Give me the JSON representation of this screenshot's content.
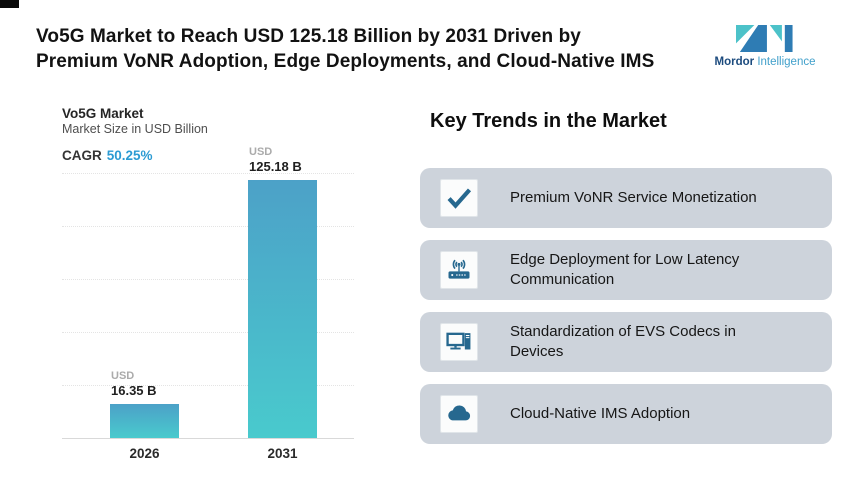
{
  "header": {
    "title_line1": "Vo5G Market to Reach USD 125.18 Billion by 2031 Driven by",
    "title_line2": "Premium VoNR Adoption, Edge Deployments, and Cloud-Native IMS",
    "logo": {
      "brand_primary": "Mordor",
      "brand_secondary": "Intelligence",
      "teal": "#4cc2c9",
      "blue": "#2e7cb4"
    }
  },
  "chart": {
    "title": "Vo5G Market",
    "subtitle": "Market Size in USD Billion",
    "cagr_label": "CAGR",
    "cagr_value": "50.25%",
    "currency_label": "USD"
  },
  "chart_data": {
    "type": "bar",
    "title": "Vo5G Market",
    "subtitle": "Market Size in USD Billion",
    "cagr": "50.25%",
    "categories": [
      "2026",
      "2031"
    ],
    "values": [
      16.35,
      125.18
    ],
    "bar_value_labels": [
      "16.35 B",
      "125.18 B"
    ],
    "unit": "USD Billion",
    "xlabel": "",
    "ylabel": "",
    "ylim": [
      0,
      130
    ],
    "grid": "horizontal-dotted",
    "legend": "none",
    "bar_gradient_top": "#4ca1c8",
    "bar_gradient_bottom": "#49cacd"
  },
  "trends": {
    "heading": "Key Trends in the Market",
    "items": [
      {
        "icon": "checkmark-icon",
        "label": "Premium VoNR Service Monetization"
      },
      {
        "icon": "router-signal-icon",
        "label": "Edge Deployment for Low Latency Communication"
      },
      {
        "icon": "desktop-computer-icon",
        "label": "Standardization of EVS Codecs in Devices"
      },
      {
        "icon": "cloud-icon",
        "label": "Cloud-Native IMS Adoption"
      }
    ]
  },
  "colors": {
    "card_background": "#cdd3db",
    "icon_blue": "#26688f",
    "cagr_blue": "#2c9bd3",
    "title_text": "#121212"
  }
}
